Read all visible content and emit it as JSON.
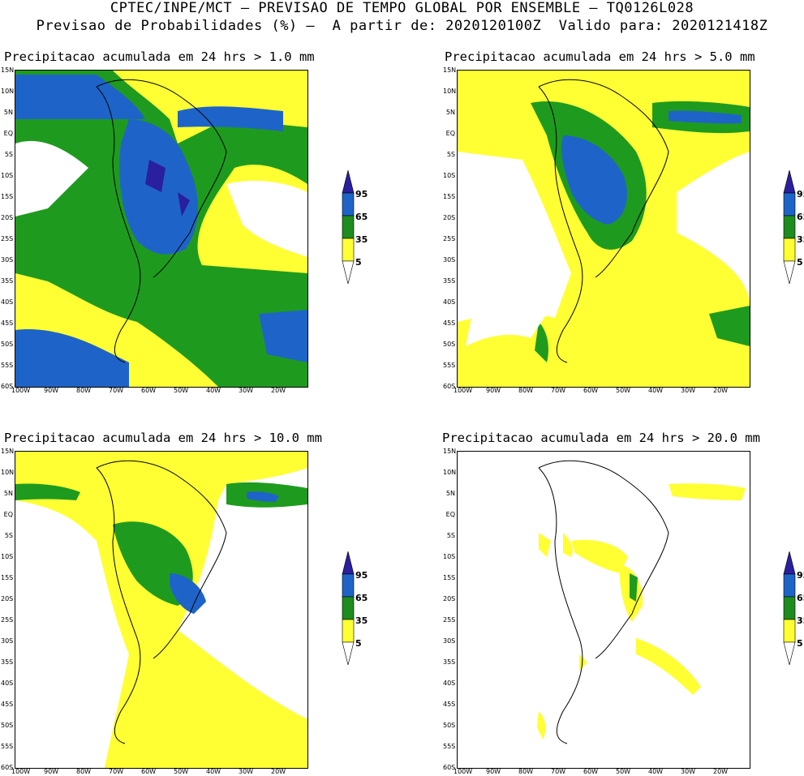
{
  "header": {
    "line1": "CPTEC/INPE/MCT – PREVISAO DE TEMPO GLOBAL POR ENSEMBLE – TQ0126L028",
    "line2": "Previsao de Probabilidades (%) –  A partir de: 2020120100Z  Valido para: 2020121418Z"
  },
  "panels": [
    {
      "title": "Precipitacao acumulada em 24 hrs > 1.0 mm"
    },
    {
      "title": "Precipitacao acumulada em 24 hrs > 5.0 mm"
    },
    {
      "title": "Precipitacao acumulada em 24 hrs > 10.0 mm"
    },
    {
      "title": "Precipitacao acumulada em 24 hrs > 20.0 mm"
    }
  ],
  "lat_labels": [
    "15N",
    "10N",
    "5N",
    "EQ",
    "5S",
    "10S",
    "15S",
    "20S",
    "25S",
    "30S",
    "35S",
    "40S",
    "45S",
    "50S",
    "55S",
    "60S"
  ],
  "lon_labels": [
    "100W",
    "90W",
    "80W",
    "70W",
    "60W",
    "50W",
    "40W",
    "30W",
    "20W"
  ],
  "colorbar": {
    "labels": [
      "95",
      "65",
      "35",
      "5"
    ],
    "colors": {
      "c95": "#2a1f9e",
      "c65": "#1e64c8",
      "c35": "#1e8c1e",
      "c5": "#ffff33"
    }
  },
  "colors": {
    "yellow": "#ffff33",
    "green": "#1e9b1e",
    "blue": "#1e64c8",
    "dark_blue": "#2a1f9e"
  }
}
